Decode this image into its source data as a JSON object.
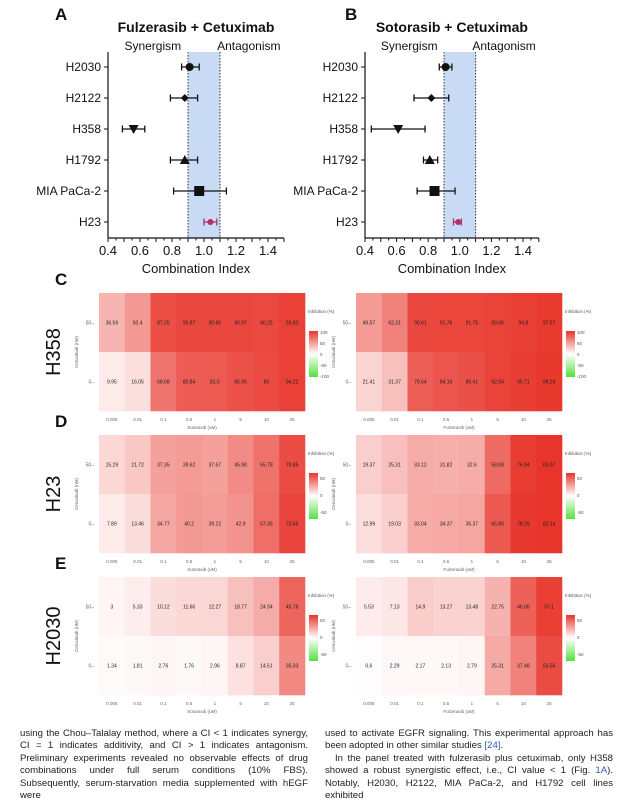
{
  "forest_plots": [
    {
      "panel": "A",
      "title": "Fulzerasib + Cetuximab",
      "left_label": "Synergism",
      "right_label": "Antagonism",
      "xlabel": "Combination Index",
      "xlim": [
        0.4,
        1.5
      ],
      "xticks": [
        0.4,
        0.6,
        0.8,
        1.0,
        1.2,
        1.4
      ],
      "additive_band": [
        0.9,
        1.1
      ],
      "rows": [
        {
          "cell": "H2030",
          "ci": 0.91,
          "lo": 0.86,
          "hi": 0.97,
          "marker": "circle",
          "color": "#111111"
        },
        {
          "cell": "H2122",
          "ci": 0.88,
          "lo": 0.79,
          "hi": 0.96,
          "marker": "diamond",
          "color": "#111111"
        },
        {
          "cell": "H358",
          "ci": 0.56,
          "lo": 0.49,
          "hi": 0.63,
          "marker": "triangle-down",
          "color": "#111111"
        },
        {
          "cell": "H1792",
          "ci": 0.88,
          "lo": 0.79,
          "hi": 0.96,
          "marker": "triangle-up",
          "color": "#111111"
        },
        {
          "cell": "MIA PaCa-2",
          "ci": 0.97,
          "lo": 0.81,
          "hi": 1.14,
          "marker": "square",
          "color": "#111111"
        },
        {
          "cell": "H23",
          "ci": 1.04,
          "lo": 1.0,
          "hi": 1.08,
          "marker": "circle",
          "color": "#b0306a"
        }
      ]
    },
    {
      "panel": "B",
      "title": "Sotorasib + Cetuximab",
      "left_label": "Synergism",
      "right_label": "Antagonism",
      "xlabel": "Combination Index",
      "xlim": [
        0.4,
        1.5
      ],
      "xticks": [
        0.4,
        0.6,
        0.8,
        1.0,
        1.2,
        1.4
      ],
      "additive_band": [
        0.9,
        1.1
      ],
      "rows": [
        {
          "cell": "H2030",
          "ci": 0.91,
          "lo": 0.87,
          "hi": 0.95,
          "marker": "circle",
          "color": "#111111"
        },
        {
          "cell": "H2122",
          "ci": 0.82,
          "lo": 0.71,
          "hi": 0.93,
          "marker": "diamond",
          "color": "#111111"
        },
        {
          "cell": "H358",
          "ci": 0.61,
          "lo": 0.44,
          "hi": 0.78,
          "marker": "triangle-down",
          "color": "#111111"
        },
        {
          "cell": "H1792",
          "ci": 0.81,
          "lo": 0.77,
          "hi": 0.86,
          "marker": "triangle-up",
          "color": "#111111"
        },
        {
          "cell": "MIA PaCa-2",
          "ci": 0.84,
          "lo": 0.73,
          "hi": 0.97,
          "marker": "square",
          "color": "#111111"
        },
        {
          "cell": "H23",
          "ci": 0.99,
          "lo": 0.96,
          "hi": 1.01,
          "marker": "circle",
          "color": "#b0306a"
        }
      ]
    }
  ],
  "heatmaps": {
    "columns": [
      "0.005",
      "0.01",
      "0.1",
      "0.5",
      "1",
      "5",
      "10",
      "25"
    ],
    "ylabel": "Cetuximab (nM)",
    "rows_labels": [
      "50",
      "0"
    ],
    "legend_title": "Inhibition (%)",
    "colors": {
      "high": "#e8352b",
      "mid": "#ffffff",
      "low": "#55e040"
    },
    "panels": [
      {
        "panel": "C",
        "cell": "H358",
        "legend_ticks": [
          "100",
          "50",
          "0",
          "-50",
          "-100"
        ],
        "scale_max": 100,
        "left": {
          "xlabel": "Sotorasib (uM)",
          "row50": [
            "36.59",
            "50.4",
            "87.25",
            "90.87",
            "90.86",
            "90.97",
            "90.25",
            "93.83"
          ],
          "row0": [
            "9.95",
            "16.05",
            "68.68",
            "80.84",
            "81.5",
            "85.95",
            "89",
            "94.22"
          ]
        },
        "right": {
          "xlabel": "Fulzerasib (uM)",
          "row50": [
            "49.57",
            "62.31",
            "90.61",
            "91.76",
            "91.75",
            "93.06",
            "94.8",
            "97.57"
          ],
          "row0": [
            "21.41",
            "31.37",
            "79.54",
            "84.16",
            "86.41",
            "92.84",
            "95.71",
            "98.26"
          ]
        }
      },
      {
        "panel": "D",
        "cell": "H23",
        "legend_ticks": [
          "50",
          "0",
          "-50"
        ],
        "scale_max": 80,
        "left": {
          "xlabel": "Sotorasib (uM)",
          "row50": [
            "15.29",
            "21.72",
            "37.35",
            "39.62",
            "37.67",
            "45.98",
            "55.78",
            "70.85"
          ],
          "row0": [
            "7.89",
            "13.46",
            "34.77",
            "40.2",
            "39.22",
            "42.9",
            "57.35",
            "73.56"
          ]
        },
        "right": {
          "xlabel": "Fulzerasib (uM)",
          "row50": [
            "19.37",
            "25.31",
            "33.12",
            "31.82",
            "32.6",
            "58.68",
            "76.94",
            "83.07"
          ],
          "row0": [
            "12.99",
            "19.03",
            "33.04",
            "34.37",
            "35.37",
            "65.86",
            "78.29",
            "83.14"
          ]
        }
      },
      {
        "panel": "E",
        "cell": "H2030",
        "legend_ticks": [
          "50",
          "0",
          "-50"
        ],
        "scale_max": 60,
        "left": {
          "xlabel": "Sotorasib (uM)",
          "row50": [
            "3",
            "5.33",
            "10.12",
            "11.66",
            "12.27",
            "18.77",
            "24.94",
            "45.76"
          ],
          "row0": [
            "1.34",
            "1.81",
            "2.76",
            "1.76",
            "2.96",
            "8.87",
            "14.51",
            "35.03"
          ]
        },
        "right": {
          "xlabel": "Fulzerasib (uM)",
          "row50": [
            "5.53",
            "7.13",
            "14.9",
            "13.27",
            "13.48",
            "22.75",
            "46.86",
            "57.1"
          ],
          "row0": [
            "0.6",
            "2.29",
            "2.17",
            "2.13",
            "2.79",
            "25.31",
            "37.48",
            "53.56"
          ]
        }
      }
    ]
  },
  "body_text": {
    "left_paragraph": "using the Chou–Talalay method, where a CI < 1 indicates synergy, CI = 1 indicates additivity, and CI > 1 indicates antagonism. Preliminary experiments revealed no observable effects of drug combinations under full serum conditions (10% FBS). Subsequently, serum-starvation media supplemented with hEGF were",
    "right_paragraph_1": "used to activate EGFR signaling. This experimental approach has been adopted in other similar studies ",
    "right_ref_1": "[24]",
    "right_paragraph_1_end": ".",
    "right_paragraph_2": "In the panel treated with fulzerasib plus cetuximab, only H358 showed a robust synergistic effect, i.e., CI value < 1 (Fig. ",
    "right_ref_2": "1A",
    "right_paragraph_2_end": "). Notably, H2030, H2122, MIA PaCa-2, and H1792 cell lines exhibited"
  }
}
